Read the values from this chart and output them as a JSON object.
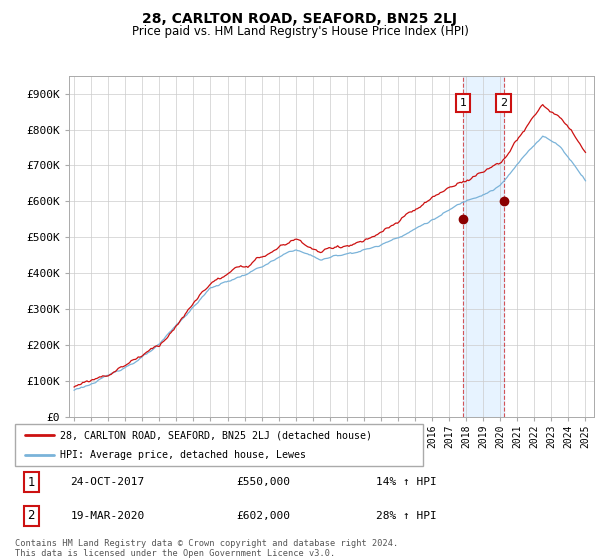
{
  "title": "28, CARLTON ROAD, SEAFORD, BN25 2LJ",
  "subtitle": "Price paid vs. HM Land Registry's House Price Index (HPI)",
  "ylabel_ticks": [
    "£0",
    "£100K",
    "£200K",
    "£300K",
    "£400K",
    "£500K",
    "£600K",
    "£700K",
    "£800K",
    "£900K"
  ],
  "ytick_values": [
    0,
    100000,
    200000,
    300000,
    400000,
    500000,
    600000,
    700000,
    800000,
    900000
  ],
  "ylim": [
    0,
    950000
  ],
  "xlim_start": 1994.7,
  "xlim_end": 2025.5,
  "sale1_x": 2017.81,
  "sale1_y": 550000,
  "sale1_label": "1",
  "sale2_x": 2020.21,
  "sale2_y": 602000,
  "sale2_label": "2",
  "hpi_color": "#7ab3d9",
  "price_color": "#cc1111",
  "highlight_color_bg": "#ddeeff",
  "legend_line1": "28, CARLTON ROAD, SEAFORD, BN25 2LJ (detached house)",
  "legend_line2": "HPI: Average price, detached house, Lewes",
  "annotation1_date": "24-OCT-2017",
  "annotation1_price": "£550,000",
  "annotation1_hpi": "14% ↑ HPI",
  "annotation2_date": "19-MAR-2020",
  "annotation2_price": "£602,000",
  "annotation2_hpi": "28% ↑ HPI",
  "footer": "Contains HM Land Registry data © Crown copyright and database right 2024.\nThis data is licensed under the Open Government Licence v3.0.",
  "grid_color": "#cccccc",
  "background_color": "#ffffff",
  "title_fontsize": 10,
  "subtitle_fontsize": 8.5
}
